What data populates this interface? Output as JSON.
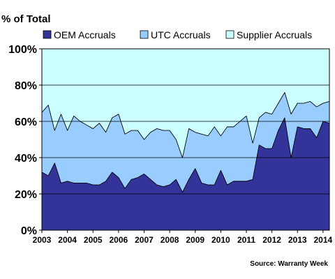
{
  "chart_data": {
    "type": "area",
    "stacking": "percent",
    "title": "% of Total",
    "xlabel": "",
    "ylabel": "",
    "ylim": [
      0,
      100
    ],
    "y_ticks": [
      "0%",
      "20%",
      "40%",
      "60%",
      "80%",
      "100%"
    ],
    "x_ticks": [
      "2003",
      "2004",
      "2005",
      "2006",
      "2007",
      "2008",
      "2009",
      "2010",
      "2011",
      "2012",
      "2013",
      "2014"
    ],
    "grid": true,
    "legend_position": "top",
    "source": "Source: Warranty Week",
    "x": [
      "2003 Q1",
      "2003 Q2",
      "2003 Q3",
      "2003 Q4",
      "2004 Q1",
      "2004 Q2",
      "2004 Q3",
      "2004 Q4",
      "2005 Q1",
      "2005 Q2",
      "2005 Q3",
      "2005 Q4",
      "2006 Q1",
      "2006 Q2",
      "2006 Q3",
      "2006 Q4",
      "2007 Q1",
      "2007 Q2",
      "2007 Q3",
      "2007 Q4",
      "2008 Q1",
      "2008 Q2",
      "2008 Q3",
      "2008 Q4",
      "2009 Q1",
      "2009 Q2",
      "2009 Q3",
      "2009 Q4",
      "2010 Q1",
      "2010 Q2",
      "2010 Q3",
      "2010 Q4",
      "2011 Q1",
      "2011 Q2",
      "2011 Q3",
      "2011 Q4",
      "2012 Q1",
      "2012 Q2",
      "2012 Q3",
      "2012 Q4",
      "2013 Q1",
      "2013 Q2",
      "2013 Q3",
      "2013 Q4",
      "2014 Q1",
      "2014 Q2"
    ],
    "series": [
      {
        "name": "OEM Accruals",
        "color": "#333399",
        "values": [
          32,
          30,
          37,
          26,
          27,
          26,
          26,
          26,
          25,
          25,
          27,
          32,
          29,
          23,
          28,
          29,
          31,
          28,
          25,
          24,
          25,
          28,
          21,
          28,
          34,
          26,
          25,
          25,
          33,
          25,
          27,
          27,
          27,
          28,
          47,
          45,
          45,
          55,
          62,
          40,
          57,
          56,
          56,
          51,
          60,
          59
        ]
      },
      {
        "name": "UTC Accruals",
        "color": "#99ccff",
        "values": [
          33,
          39,
          18,
          38,
          28,
          37,
          34,
          32,
          31,
          34,
          27,
          30,
          35,
          30,
          27,
          26,
          19,
          26,
          31,
          31,
          30,
          22,
          19,
          28,
          20,
          27,
          27,
          32,
          19,
          32,
          30,
          33,
          36,
          20,
          15,
          20,
          19,
          15,
          14,
          24,
          13,
          14,
          15,
          17,
          10,
          12
        ]
      },
      {
        "name": "Supplier Accruals",
        "color": "#ccffff",
        "values": [
          35,
          31,
          45,
          36,
          45,
          37,
          40,
          42,
          44,
          41,
          46,
          38,
          36,
          47,
          45,
          45,
          50,
          46,
          44,
          45,
          45,
          50,
          60,
          44,
          46,
          47,
          48,
          43,
          48,
          43,
          43,
          40,
          37,
          52,
          38,
          35,
          36,
          30,
          24,
          36,
          30,
          30,
          29,
          32,
          30,
          29
        ]
      }
    ]
  }
}
